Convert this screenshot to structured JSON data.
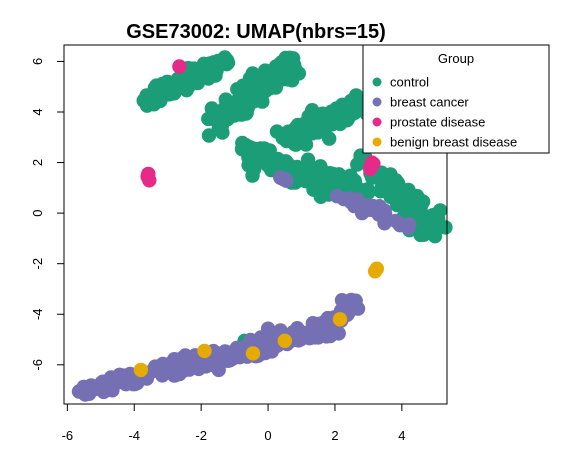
{
  "chart_data": {
    "type": "scatter",
    "title": "GSE73002: UMAP(nbrs=15)",
    "xlabel": "",
    "ylabel": "",
    "xlim": [
      -6.1,
      5.35
    ],
    "ylim": [
      -7.55,
      6.65
    ],
    "x_ticks": [
      -6,
      -4,
      -2,
      0,
      2,
      4
    ],
    "y_ticks": [
      -6,
      -4,
      -2,
      0,
      2,
      4,
      6
    ],
    "x_tick_labels": [
      "-6",
      "-4",
      "-2",
      "0",
      "2",
      "4"
    ],
    "y_tick_labels": [
      "-6",
      "-4",
      "-2",
      "0",
      "2",
      "4",
      "6"
    ],
    "grid": false,
    "legend": {
      "title": "Group",
      "placement": "top-right"
    },
    "series": [
      {
        "name": "control",
        "color": "#1B9E77",
        "clusters": [
          {
            "x": [
              -3.8,
              -1.6
            ],
            "y": [
              4.4,
              5.8
            ],
            "n": 90,
            "spread": 0.18
          },
          {
            "x": [
              -1.5,
              0.8
            ],
            "y": [
              3.6,
              5.9
            ],
            "n": 110,
            "spread": 0.22
          },
          {
            "x": [
              0.6,
              2.8
            ],
            "y": [
              3.0,
              4.3
            ],
            "n": 80,
            "spread": 0.2
          },
          {
            "x": [
              -0.8,
              1.6
            ],
            "y": [
              2.6,
              1.0
            ],
            "n": 90,
            "spread": 0.22
          },
          {
            "x": [
              1.2,
              3.0
            ],
            "y": [
              1.6,
              0.8
            ],
            "n": 60,
            "spread": 0.2
          },
          {
            "x": [
              2.8,
              4.9
            ],
            "y": [
              2.2,
              -0.6
            ],
            "n": 90,
            "spread": 0.22
          },
          {
            "x": [
              -2.2,
              -1.2
            ],
            "y": [
              5.6,
              6.0
            ],
            "n": 20,
            "spread": 0.1
          },
          {
            "x": [
              -0.7,
              -0.7
            ],
            "y": [
              -5.05,
              -5.05
            ],
            "n": 1,
            "spread": 0.0
          }
        ]
      },
      {
        "name": "breast cancer",
        "color": "#7570B3",
        "clusters": [
          {
            "x": [
              -5.6,
              -2.6
            ],
            "y": [
              -7.0,
              -6.0
            ],
            "n": 80,
            "spread": 0.1
          },
          {
            "x": [
              -3.2,
              -0.3
            ],
            "y": [
              -6.2,
              -5.4
            ],
            "n": 110,
            "spread": 0.15
          },
          {
            "x": [
              -0.4,
              1.8
            ],
            "y": [
              -5.3,
              -4.6
            ],
            "n": 90,
            "spread": 0.15
          },
          {
            "x": [
              1.6,
              2.6
            ],
            "y": [
              -4.6,
              -3.6
            ],
            "n": 40,
            "spread": 0.12
          },
          {
            "x": [
              2.4,
              4.2
            ],
            "y": [
              0.6,
              -0.6
            ],
            "n": 30,
            "spread": 0.12
          },
          {
            "x": [
              0.2,
              0.6
            ],
            "y": [
              1.5,
              1.2
            ],
            "n": 4,
            "spread": 0.05
          }
        ]
      },
      {
        "name": "prostate disease",
        "color": "#E7298A",
        "points": [
          {
            "x": -2.65,
            "y": 5.8
          },
          {
            "x": -3.6,
            "y": 1.45
          },
          {
            "x": -3.55,
            "y": 1.3
          },
          {
            "x": -3.58,
            "y": 1.55
          },
          {
            "x": 3.1,
            "y": 2.0
          },
          {
            "x": 3.05,
            "y": 1.75
          },
          {
            "x": 3.15,
            "y": 1.95
          }
        ]
      },
      {
        "name": "benign breast disease",
        "color": "#E6AB02",
        "points": [
          {
            "x": 3.2,
            "y": -2.3
          },
          {
            "x": 3.25,
            "y": -2.2
          },
          {
            "x": 2.15,
            "y": -4.2
          },
          {
            "x": 0.5,
            "y": -5.05
          },
          {
            "x": -0.45,
            "y": -5.55
          },
          {
            "x": -1.9,
            "y": -5.45
          },
          {
            "x": -3.8,
            "y": -6.2
          }
        ]
      }
    ]
  }
}
